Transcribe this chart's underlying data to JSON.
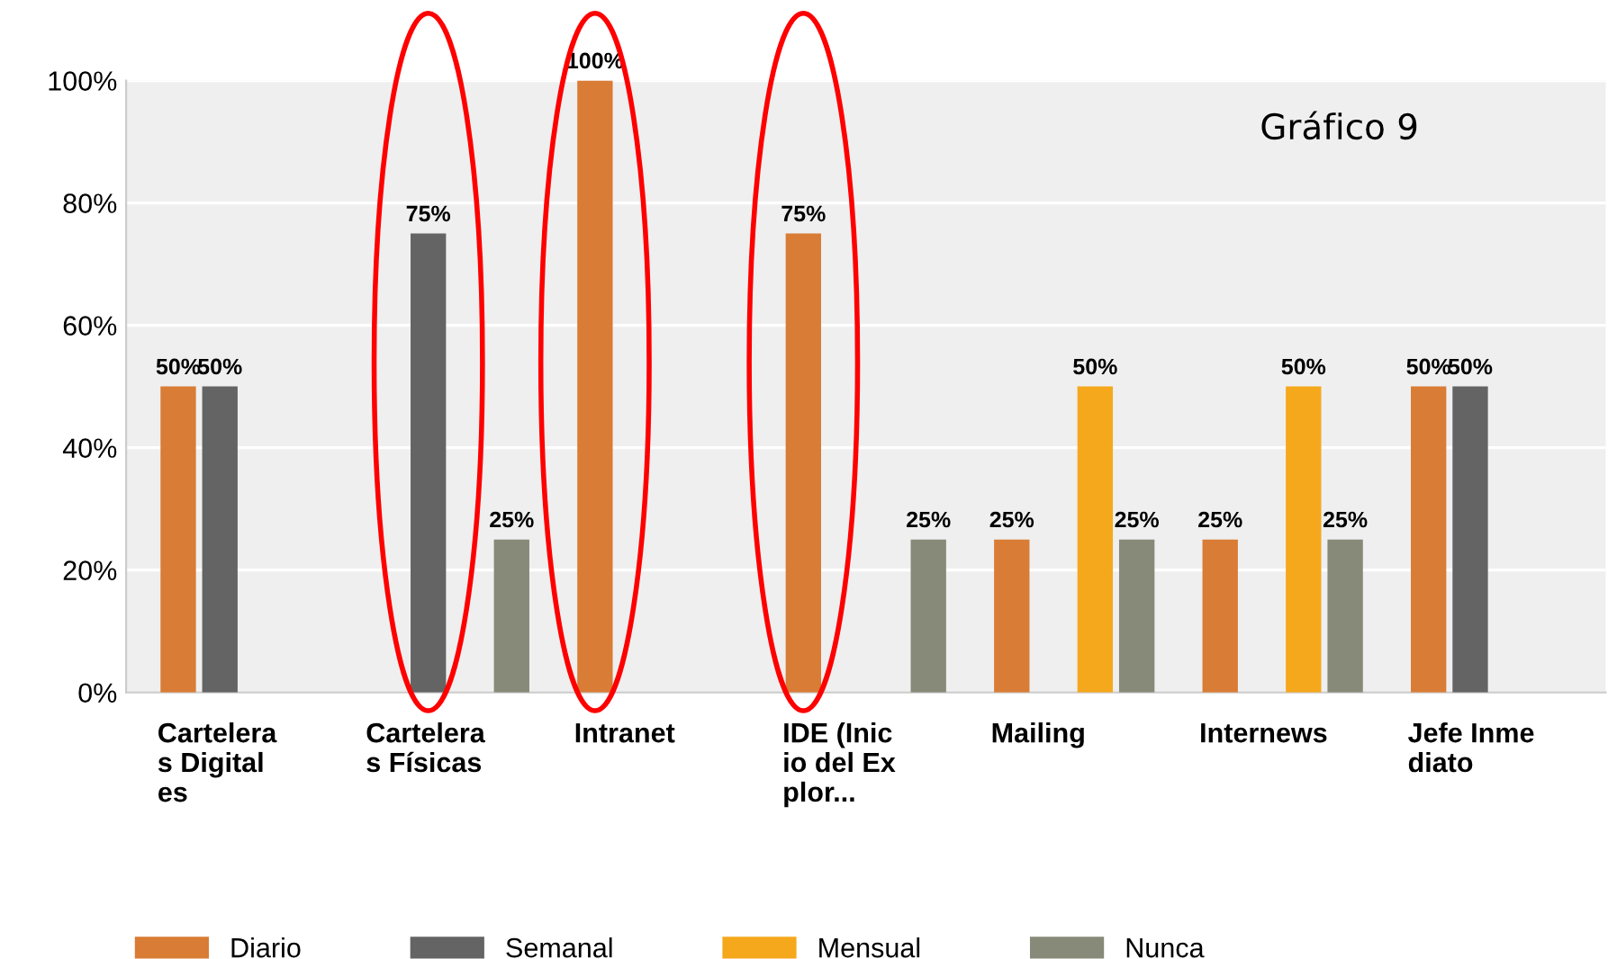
{
  "chart_data": {
    "type": "bar",
    "title": "Gráfico 9",
    "categories": [
      "Carteleras Digitales",
      "Carteleras Físicas",
      "Intranet",
      "IDE (Inicio del Explor...",
      "Mailing",
      "Internews",
      "Jefe Inmediato"
    ],
    "series": [
      {
        "name": "Diario",
        "color": "#d97c35",
        "values": [
          50,
          null,
          100,
          75,
          25,
          25,
          50
        ],
        "value_labels": [
          "50%",
          null,
          "100%",
          "75%",
          "25%",
          "25%",
          "50%"
        ]
      },
      {
        "name": "Semanal",
        "color": "#646464",
        "values": [
          50,
          75,
          null,
          null,
          null,
          null,
          50
        ],
        "value_labels": [
          "50%",
          "75%",
          null,
          null,
          null,
          null,
          "50%"
        ]
      },
      {
        "name": "Mensual",
        "color": "#f5a81c",
        "values": [
          null,
          null,
          null,
          null,
          50,
          50,
          null
        ],
        "value_labels": [
          null,
          null,
          null,
          null,
          "50%",
          "50%",
          null
        ]
      },
      {
        "name": "Nunca",
        "color": "#878a78",
        "values": [
          null,
          25,
          null,
          25,
          25,
          25,
          null
        ],
        "value_labels": [
          null,
          "25%",
          null,
          "25%",
          "25%",
          "25%",
          null
        ]
      }
    ],
    "ylim": [
      0,
      100
    ],
    "yticks": [
      {
        "value": 0,
        "label": "0%"
      },
      {
        "value": 20,
        "label": "20%"
      },
      {
        "value": 40,
        "label": "40%"
      },
      {
        "value": 60,
        "label": "60%"
      },
      {
        "value": 80,
        "label": "80%"
      },
      {
        "value": 100,
        "label": "100%"
      }
    ],
    "grid": "y",
    "legend": "bottom"
  }
}
